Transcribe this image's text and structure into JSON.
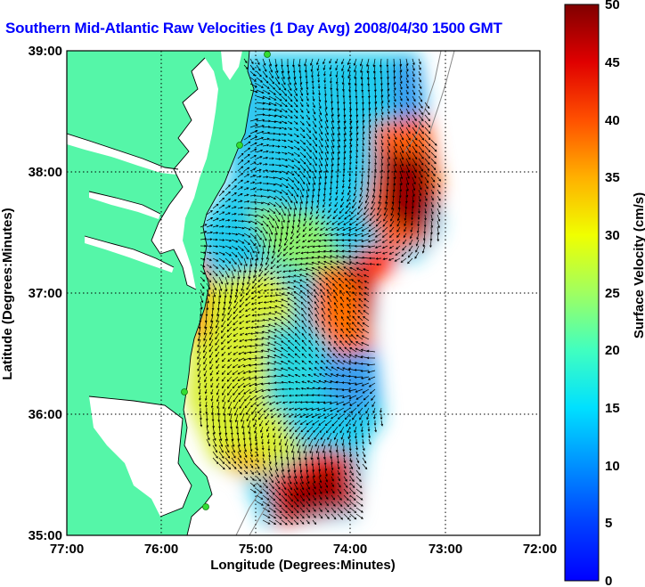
{
  "title": "Southern Mid-Atlantic Raw Velocities (1 Day Avg) 2008/04/30 1500 GMT",
  "xaxis": {
    "label": "Longitude (Degrees:Minutes)",
    "ticks": [
      "77:00",
      "76:00",
      "75:00",
      "74:00",
      "73:00",
      "72:00"
    ]
  },
  "yaxis": {
    "label": "Latitude (Degrees:Minutes)",
    "ticks": [
      "39:00",
      "38:00",
      "37:00",
      "36:00",
      "35:00"
    ]
  },
  "colorbar": {
    "label": "Surface Velocity (cm/s)",
    "ticks": [
      "50",
      "45",
      "40",
      "35",
      "30",
      "25",
      "20",
      "15",
      "10",
      "5",
      "0"
    ],
    "min": 0,
    "max": 50,
    "colormap": "jet"
  },
  "colors": {
    "land": "#55f6a8",
    "water": "#ffffff",
    "title": "#0000ff",
    "station_marker": "#33dd33"
  },
  "map_extent": {
    "lon": [
      "77:00 W",
      "72:00 W"
    ],
    "lat": [
      "35:00 N",
      "39:00 N"
    ]
  }
}
